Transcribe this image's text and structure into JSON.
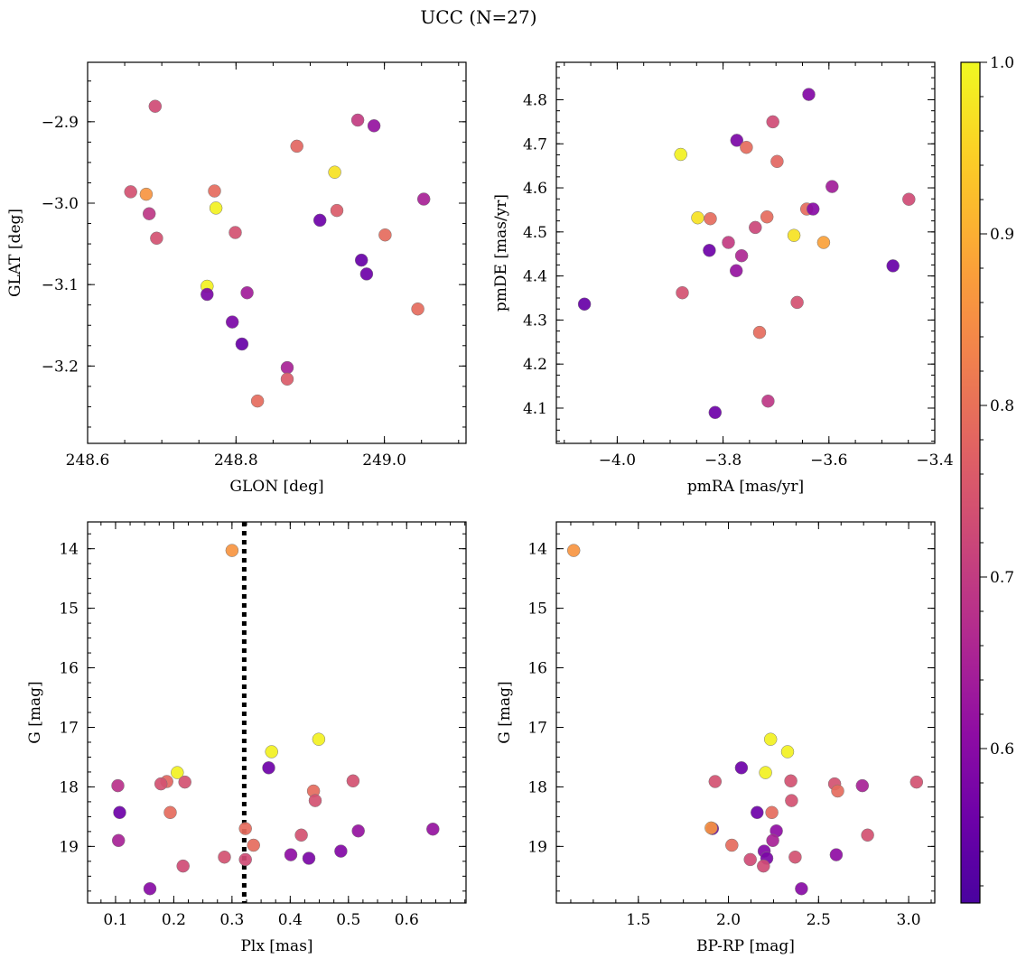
{
  "figure": {
    "title": "UCC (N=27)"
  },
  "colormap": {
    "name": "plasma",
    "range": [
      0.51,
      1.0
    ],
    "ticks": [
      0.6,
      0.7,
      0.8,
      0.9,
      1.0
    ],
    "tick_labels": [
      "0.6",
      "0.7",
      "0.8",
      "0.9",
      "1.0"
    ]
  },
  "chart_data": [
    {
      "type": "scatter",
      "xlabel": "GLON [deg]",
      "ylabel": "GLAT [deg]",
      "xlim": [
        248.6,
        249.11
      ],
      "ylim": [
        -3.295,
        -2.827
      ],
      "x_ticks": [
        248.6,
        248.8,
        249.0
      ],
      "x_tick_labels": [
        "248.6",
        "248.8",
        "249.0"
      ],
      "y_ticks": [
        -2.9,
        -3.0,
        -3.1,
        -3.2
      ],
      "y_tick_labels": [
        "−2.9",
        "−3.0",
        "−3.1",
        "−3.2"
      ],
      "points": [
        {
          "x": 248.691,
          "y": -2.881,
          "c": 0.73
        },
        {
          "x": 248.658,
          "y": -2.986,
          "c": 0.74
        },
        {
          "x": 248.679,
          "y": -2.989,
          "c": 0.86
        },
        {
          "x": 248.683,
          "y": -3.013,
          "c": 0.69
        },
        {
          "x": 248.693,
          "y": -3.043,
          "c": 0.74
        },
        {
          "x": 248.771,
          "y": -2.985,
          "c": 0.79
        },
        {
          "x": 248.773,
          "y": -3.006,
          "c": 0.99
        },
        {
          "x": 248.799,
          "y": -3.036,
          "c": 0.74
        },
        {
          "x": 248.761,
          "y": -3.102,
          "c": 0.99
        },
        {
          "x": 248.761,
          "y": -3.112,
          "c": 0.58
        },
        {
          "x": 248.815,
          "y": -3.11,
          "c": 0.64
        },
        {
          "x": 248.795,
          "y": -3.146,
          "c": 0.58
        },
        {
          "x": 248.808,
          "y": -3.173,
          "c": 0.55
        },
        {
          "x": 248.829,
          "y": -3.243,
          "c": 0.79
        },
        {
          "x": 248.869,
          "y": -3.202,
          "c": 0.65
        },
        {
          "x": 248.869,
          "y": -3.216,
          "c": 0.76
        },
        {
          "x": 248.882,
          "y": -2.93,
          "c": 0.78
        },
        {
          "x": 248.933,
          "y": -2.962,
          "c": 0.97
        },
        {
          "x": 248.913,
          "y": -3.021,
          "c": 0.56
        },
        {
          "x": 248.936,
          "y": -3.009,
          "c": 0.76
        },
        {
          "x": 248.964,
          "y": -2.898,
          "c": 0.7
        },
        {
          "x": 248.986,
          "y": -2.905,
          "c": 0.62
        },
        {
          "x": 248.969,
          "y": -3.07,
          "c": 0.55
        },
        {
          "x": 248.976,
          "y": -3.087,
          "c": 0.56
        },
        {
          "x": 249.001,
          "y": -3.039,
          "c": 0.79
        },
        {
          "x": 249.053,
          "y": -2.995,
          "c": 0.65
        },
        {
          "x": 249.045,
          "y": -3.13,
          "c": 0.79
        }
      ]
    },
    {
      "type": "scatter",
      "xlabel": "pmRA [mas/yr]",
      "ylabel": "pmDE [mas/yr]",
      "xlim": [
        -4.115,
        -3.4
      ],
      "ylim": [
        4.02,
        4.885
      ],
      "x_ticks": [
        -4.0,
        -3.8,
        -3.6,
        -3.4
      ],
      "x_tick_labels": [
        "−4.0",
        "−3.8",
        "−3.6",
        "−3.4"
      ],
      "y_ticks": [
        4.1,
        4.2,
        4.3,
        4.4,
        4.5,
        4.6,
        4.7,
        4.8
      ],
      "y_tick_labels": [
        "4.1",
        "4.2",
        "4.3",
        "4.4",
        "4.5",
        "4.6",
        "4.7",
        "4.8"
      ],
      "points": [
        {
          "x": -4.062,
          "y": 4.336,
          "c": 0.55
        },
        {
          "x": -3.88,
          "y": 4.676,
          "c": 0.99
        },
        {
          "x": -3.877,
          "y": 4.362,
          "c": 0.74
        },
        {
          "x": -3.848,
          "y": 4.532,
          "c": 0.97
        },
        {
          "x": -3.824,
          "y": 4.53,
          "c": 0.79
        },
        {
          "x": -3.826,
          "y": 4.458,
          "c": 0.56
        },
        {
          "x": -3.815,
          "y": 4.09,
          "c": 0.56
        },
        {
          "x": -3.774,
          "y": 4.708,
          "c": 0.58
        },
        {
          "x": -3.775,
          "y": 4.412,
          "c": 0.62
        },
        {
          "x": -3.79,
          "y": 4.476,
          "c": 0.7
        },
        {
          "x": -3.765,
          "y": 4.446,
          "c": 0.66
        },
        {
          "x": -3.756,
          "y": 4.692,
          "c": 0.79
        },
        {
          "x": -3.739,
          "y": 4.51,
          "c": 0.72
        },
        {
          "x": -3.731,
          "y": 4.272,
          "c": 0.79
        },
        {
          "x": -3.717,
          "y": 4.534,
          "c": 0.79
        },
        {
          "x": -3.715,
          "y": 4.116,
          "c": 0.69
        },
        {
          "x": -3.706,
          "y": 4.75,
          "c": 0.73
        },
        {
          "x": -3.698,
          "y": 4.66,
          "c": 0.78
        },
        {
          "x": -3.666,
          "y": 4.492,
          "c": 0.97
        },
        {
          "x": -3.66,
          "y": 4.34,
          "c": 0.74
        },
        {
          "x": -3.642,
          "y": 4.552,
          "c": 0.79
        },
        {
          "x": -3.638,
          "y": 4.812,
          "c": 0.59
        },
        {
          "x": -3.63,
          "y": 4.552,
          "c": 0.6
        },
        {
          "x": -3.61,
          "y": 4.476,
          "c": 0.88
        },
        {
          "x": -3.594,
          "y": 4.603,
          "c": 0.64
        },
        {
          "x": -3.479,
          "y": 4.423,
          "c": 0.55
        },
        {
          "x": -3.449,
          "y": 4.574,
          "c": 0.73
        }
      ]
    },
    {
      "type": "scatter",
      "xlabel": "Plx [mas]",
      "ylabel": "G [mag]",
      "xlim": [
        0.052,
        0.702
      ],
      "ylim": [
        19.95,
        13.55
      ],
      "y_inverted": true,
      "x_ticks": [
        0.1,
        0.2,
        0.3,
        0.4,
        0.5,
        0.6
      ],
      "x_tick_labels": [
        "0.1",
        "0.2",
        "0.3",
        "0.4",
        "0.5",
        "0.6"
      ],
      "y_ticks": [
        14,
        15,
        16,
        17,
        18,
        19
      ],
      "y_tick_labels": [
        "14",
        "15",
        "16",
        "17",
        "18",
        "19"
      ],
      "vline": {
        "x": 0.321,
        "style": "dotted",
        "color": "#000000"
      },
      "points": [
        {
          "x": 0.3,
          "y": 14.03,
          "c": 0.86
        },
        {
          "x": 0.368,
          "y": 17.41,
          "c": 0.99
        },
        {
          "x": 0.449,
          "y": 17.2,
          "c": 0.99
        },
        {
          "x": 0.206,
          "y": 17.76,
          "c": 0.99
        },
        {
          "x": 0.363,
          "y": 17.68,
          "c": 0.56
        },
        {
          "x": 0.188,
          "y": 17.91,
          "c": 0.78
        },
        {
          "x": 0.219,
          "y": 17.92,
          "c": 0.74
        },
        {
          "x": 0.178,
          "y": 17.95,
          "c": 0.74
        },
        {
          "x": 0.104,
          "y": 17.98,
          "c": 0.68
        },
        {
          "x": 0.508,
          "y": 17.9,
          "c": 0.74
        },
        {
          "x": 0.44,
          "y": 18.07,
          "c": 0.79
        },
        {
          "x": 0.443,
          "y": 18.23,
          "c": 0.74
        },
        {
          "x": 0.107,
          "y": 18.43,
          "c": 0.56
        },
        {
          "x": 0.194,
          "y": 18.43,
          "c": 0.79
        },
        {
          "x": 0.323,
          "y": 18.7,
          "c": 0.79
        },
        {
          "x": 0.517,
          "y": 18.74,
          "c": 0.62
        },
        {
          "x": 0.645,
          "y": 18.71,
          "c": 0.62
        },
        {
          "x": 0.419,
          "y": 18.81,
          "c": 0.74
        },
        {
          "x": 0.105,
          "y": 18.9,
          "c": 0.65
        },
        {
          "x": 0.337,
          "y": 18.98,
          "c": 0.79
        },
        {
          "x": 0.487,
          "y": 19.08,
          "c": 0.59
        },
        {
          "x": 0.401,
          "y": 19.14,
          "c": 0.61
        },
        {
          "x": 0.287,
          "y": 19.18,
          "c": 0.74
        },
        {
          "x": 0.432,
          "y": 19.2,
          "c": 0.58
        },
        {
          "x": 0.323,
          "y": 19.22,
          "c": 0.73
        },
        {
          "x": 0.216,
          "y": 19.33,
          "c": 0.73
        },
        {
          "x": 0.159,
          "y": 19.71,
          "c": 0.6
        }
      ]
    },
    {
      "type": "scatter",
      "xlabel": "BP-RP [mag]",
      "ylabel": "G [mag]",
      "xlim": [
        1.045,
        3.145
      ],
      "ylim": [
        19.95,
        13.55
      ],
      "y_inverted": true,
      "x_ticks": [
        1.5,
        2.0,
        2.5,
        3.0
      ],
      "x_tick_labels": [
        "1.5",
        "2.0",
        "2.5",
        "3.0"
      ],
      "y_ticks": [
        14,
        15,
        16,
        17,
        18,
        19
      ],
      "y_tick_labels": [
        "14",
        "15",
        "16",
        "17",
        "18",
        "19"
      ],
      "points": [
        {
          "x": 1.141,
          "y": 14.03,
          "c": 0.86
        },
        {
          "x": 2.234,
          "y": 17.2,
          "c": 0.99
        },
        {
          "x": 2.328,
          "y": 17.41,
          "c": 0.99
        },
        {
          "x": 2.206,
          "y": 17.76,
          "c": 0.99
        },
        {
          "x": 2.072,
          "y": 17.68,
          "c": 0.56
        },
        {
          "x": 1.926,
          "y": 17.91,
          "c": 0.74
        },
        {
          "x": 2.346,
          "y": 17.9,
          "c": 0.74
        },
        {
          "x": 2.589,
          "y": 17.95,
          "c": 0.74
        },
        {
          "x": 2.743,
          "y": 17.98,
          "c": 0.65
        },
        {
          "x": 3.044,
          "y": 17.92,
          "c": 0.74
        },
        {
          "x": 2.606,
          "y": 18.07,
          "c": 0.79
        },
        {
          "x": 2.35,
          "y": 18.23,
          "c": 0.74
        },
        {
          "x": 2.159,
          "y": 18.43,
          "c": 0.56
        },
        {
          "x": 2.241,
          "y": 18.43,
          "c": 0.79
        },
        {
          "x": 1.911,
          "y": 18.7,
          "c": 0.56
        },
        {
          "x": 1.904,
          "y": 18.69,
          "c": 0.86
        },
        {
          "x": 2.266,
          "y": 18.74,
          "c": 0.61
        },
        {
          "x": 2.772,
          "y": 18.81,
          "c": 0.74
        },
        {
          "x": 2.246,
          "y": 18.9,
          "c": 0.65
        },
        {
          "x": 2.019,
          "y": 18.98,
          "c": 0.79
        },
        {
          "x": 2.198,
          "y": 19.08,
          "c": 0.59
        },
        {
          "x": 2.213,
          "y": 19.2,
          "c": 0.58
        },
        {
          "x": 2.598,
          "y": 19.14,
          "c": 0.61
        },
        {
          "x": 2.37,
          "y": 19.18,
          "c": 0.74
        },
        {
          "x": 2.121,
          "y": 19.22,
          "c": 0.73
        },
        {
          "x": 2.194,
          "y": 19.33,
          "c": 0.73
        },
        {
          "x": 2.405,
          "y": 19.71,
          "c": 0.6
        }
      ]
    }
  ]
}
